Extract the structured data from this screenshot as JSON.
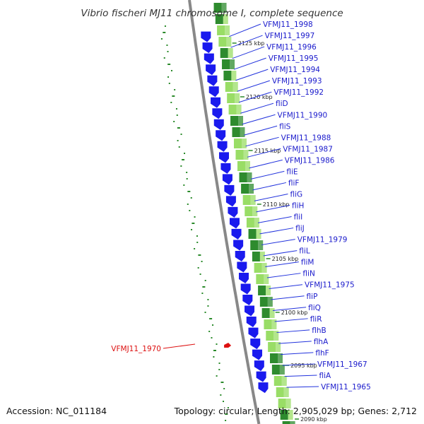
{
  "title": "Vibrio fischeri MJ11 chromosome I, complete sequence",
  "accession": "Accession: NC_011184",
  "topology": "Topology: circular; Length: 2,905,029 bp; Genes: 2,712",
  "highlighted_gene": "VFMJ11_1970",
  "colors": {
    "gene_arrow": "#1a1aee",
    "label": "#1a1acc",
    "highlight": "#dd1111",
    "backbone": "#888888",
    "gc_dots": "#2a8a2a",
    "track_dark": "#2e8b2e",
    "track_light": "#99dd66"
  },
  "ticks": [
    {
      "kbp": 2125,
      "label": "2125 kbp"
    },
    {
      "kbp": 2120,
      "label": "2120 kbp"
    },
    {
      "kbp": 2115,
      "label": "2115 kbp"
    },
    {
      "kbp": 2110,
      "label": "2110 kbp"
    },
    {
      "kbp": 2105,
      "label": "2105 kbp"
    },
    {
      "kbp": 2100,
      "label": "2100 kbp"
    },
    {
      "kbp": 2095,
      "label": "2095 kbp"
    },
    {
      "kbp": 2090,
      "label": "2090 kbp"
    }
  ],
  "genes": [
    "VFMJ11_1998",
    "VFMJ11_1997",
    "VFMJ11_1996",
    "VFMJ11_1995",
    "VFMJ11_1994",
    "VFMJ11_1993",
    "VFMJ11_1992",
    "fliD",
    "VFMJ11_1990",
    "fliS",
    "VFMJ11_1988",
    "VFMJ11_1987",
    "VFMJ11_1986",
    "fliE",
    "fliF",
    "fliG",
    "fliH",
    "fliI",
    "fliJ",
    "VFMJ11_1979",
    "fliL",
    "fliM",
    "fliN",
    "VFMJ11_1975",
    "fliP",
    "fliQ",
    "fliR",
    "flhB",
    "flhA",
    "flhF",
    "VFMJ11_1967",
    "fliA",
    "VFMJ11_1965"
  ]
}
